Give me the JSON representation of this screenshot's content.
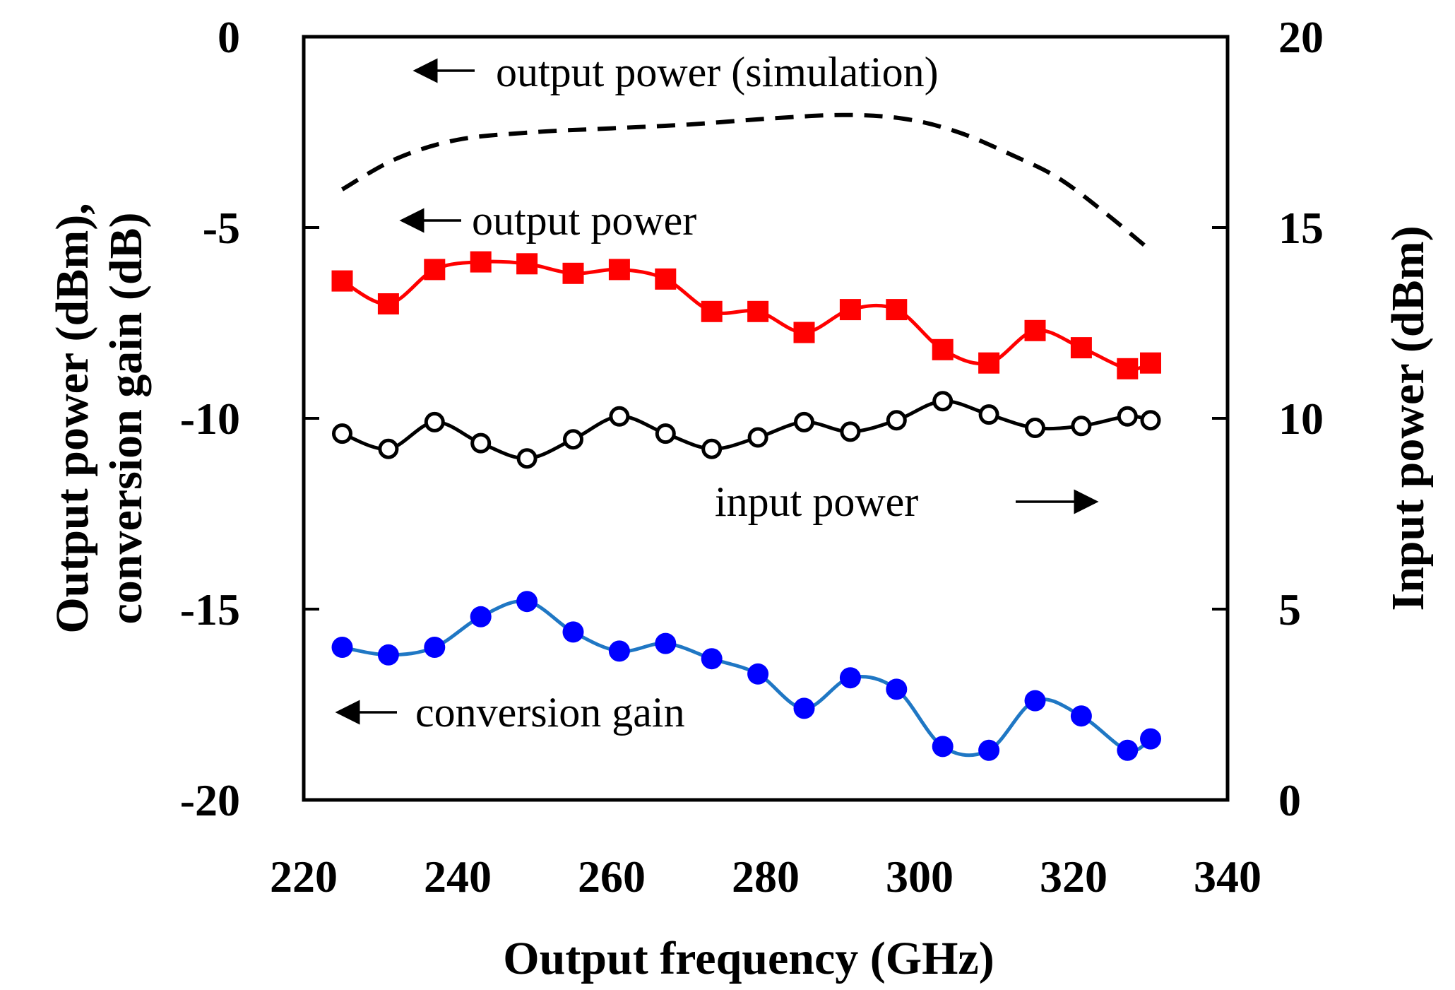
{
  "chart_data": {
    "type": "line",
    "x_label": "Output frequency (GHz)",
    "y_label_left_line1": "Output power (dBm),",
    "y_label_left_line2": "conversion gain (dB)",
    "y_label_right": "Input power (dBm)",
    "x_range": [
      220,
      340
    ],
    "y_left_range": [
      -20,
      0
    ],
    "y_right_range": [
      0,
      20
    ],
    "x_ticks": [
      "220",
      "240",
      "260",
      "280",
      "300",
      "320",
      "340"
    ],
    "y_left_ticks": [
      "-20",
      "-15",
      "-10",
      "-5",
      "0"
    ],
    "y_right_ticks": [
      "0",
      "5",
      "10",
      "15",
      "20"
    ],
    "annotations": {
      "sim": "output power (simulation)",
      "out": "output power",
      "inp": "input power",
      "cg": "conversion gain"
    },
    "series": [
      {
        "name": "output power (simulation)",
        "axis": "left",
        "style": "dashed",
        "color": "#000000",
        "x": [
          225,
          232,
          240,
          250,
          260,
          270,
          280,
          290,
          298,
          305,
          312,
          318,
          324,
          330
        ],
        "y": [
          -4.0,
          -3.2,
          -2.7,
          -2.5,
          -2.4,
          -2.3,
          -2.15,
          -2.05,
          -2.15,
          -2.5,
          -3.1,
          -3.7,
          -4.6,
          -5.6
        ]
      },
      {
        "name": "output power",
        "axis": "left",
        "marker": "square",
        "color": "#ff0000",
        "x": [
          225,
          231,
          237,
          243,
          249,
          255,
          261,
          267,
          273,
          279,
          285,
          291,
          297,
          303,
          309,
          315,
          321,
          327,
          330
        ],
        "y": [
          -6.4,
          -7.0,
          -6.1,
          -5.9,
          -5.95,
          -6.2,
          -6.1,
          -6.35,
          -7.2,
          -7.2,
          -7.75,
          -7.15,
          -7.15,
          -8.2,
          -8.55,
          -7.7,
          -8.15,
          -8.7,
          -8.55
        ]
      },
      {
        "name": "input power",
        "axis": "right",
        "marker": "circle-open",
        "color": "#000000",
        "x": [
          225,
          231,
          237,
          243,
          249,
          255,
          261,
          267,
          273,
          279,
          285,
          291,
          297,
          303,
          309,
          315,
          321,
          327,
          330
        ],
        "y": [
          9.6,
          9.2,
          9.9,
          9.35,
          8.95,
          9.45,
          10.05,
          9.6,
          9.2,
          9.5,
          9.9,
          9.65,
          9.95,
          10.45,
          10.1,
          9.75,
          9.8,
          10.05,
          9.95
        ]
      },
      {
        "name": "conversion gain",
        "axis": "left",
        "marker": "circle",
        "color": "#0000ff",
        "line_color": "#1f77c4",
        "x": [
          225,
          231,
          237,
          243,
          249,
          255,
          261,
          267,
          273,
          279,
          285,
          291,
          297,
          303,
          309,
          315,
          321,
          327,
          330
        ],
        "y": [
          -16.0,
          -16.2,
          -16.0,
          -15.2,
          -14.8,
          -15.6,
          -16.1,
          -15.9,
          -16.3,
          -16.7,
          -17.6,
          -16.8,
          -17.1,
          -18.6,
          -18.7,
          -17.4,
          -17.8,
          -18.7,
          -18.4
        ]
      }
    ]
  }
}
